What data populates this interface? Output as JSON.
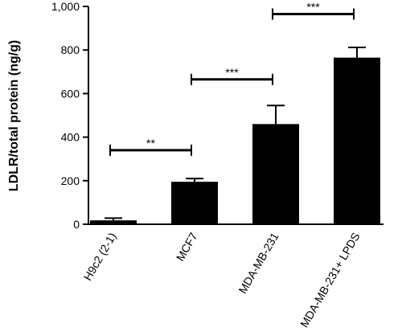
{
  "chart_data": {
    "type": "bar",
    "y_label": "LDLR/total protein (ng/g)",
    "categories": [
      "H9c2 (2-1)",
      "MCF7",
      "MDA-MB-231",
      "MDA-MB-231+ LPDS"
    ],
    "values": [
      18,
      195,
      460,
      765
    ],
    "errors": [
      10,
      15,
      85,
      47
    ],
    "color": "#000000",
    "ylim": [
      0,
      1000
    ],
    "yticks": [
      0,
      200,
      400,
      600,
      800,
      {
        "value": 1000,
        "label": "1,000"
      }
    ],
    "annotations": [
      {
        "text": "**",
        "from": 0,
        "to": 1,
        "y": 340
      },
      {
        "text": "***",
        "from": 1,
        "to": 2,
        "y": 665
      },
      {
        "text": "***",
        "from": 2,
        "to": 3,
        "y": 965
      }
    ]
  }
}
